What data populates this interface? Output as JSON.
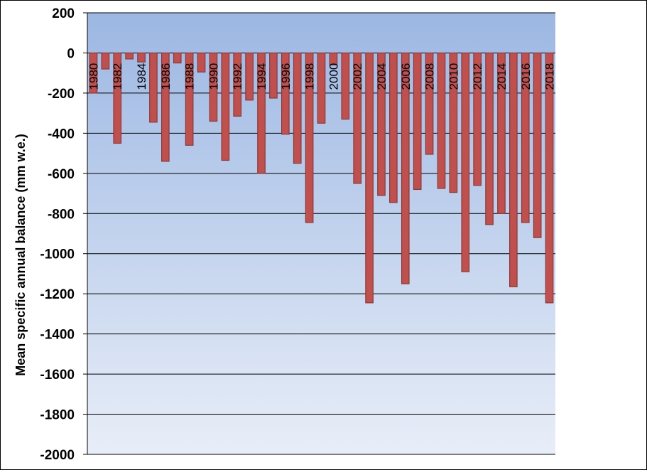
{
  "chart_data": {
    "type": "bar",
    "title": "",
    "xlabel": "",
    "ylabel": "Mean specific annual balance (mm w.e.)",
    "ylim": [
      -2000,
      200
    ],
    "yticks": [
      200,
      0,
      -200,
      -400,
      -600,
      -800,
      -1000,
      -1200,
      -1400,
      -1600,
      -1800,
      -2000
    ],
    "x_tick_labels": [
      "1980",
      "1982",
      "1984",
      "1986",
      "1988",
      "1990",
      "1992",
      "1994",
      "1996",
      "1998",
      "2000",
      "2002",
      "2004",
      "2006",
      "2008",
      "2010",
      "2012",
      "2014",
      "2016",
      "2018"
    ],
    "grid": true,
    "legend": "none",
    "categories": [
      "1980",
      "1981",
      "1982",
      "1983",
      "1984",
      "1985",
      "1986",
      "1987",
      "1988",
      "1989",
      "1990",
      "1991",
      "1992",
      "1993",
      "1994",
      "1995",
      "1996",
      "1997",
      "1998",
      "1999",
      "2000",
      "2001",
      "2002",
      "2003",
      "2004",
      "2005",
      "2006",
      "2007",
      "2008",
      "2009",
      "2010",
      "2011",
      "2012",
      "2013",
      "2014",
      "2015",
      "2016",
      "2017",
      "2018"
    ],
    "values": [
      -200,
      -80,
      -450,
      -30,
      -45,
      -345,
      -540,
      -50,
      -460,
      -95,
      -340,
      -535,
      -315,
      -235,
      -600,
      -225,
      -405,
      -550,
      -845,
      -350,
      -60,
      -330,
      -650,
      -1245,
      -710,
      -745,
      -1150,
      -680,
      -505,
      -675,
      -695,
      -1090,
      -660,
      -855,
      -800,
      -1165,
      -845,
      -920,
      -1245
    ],
    "colors": {
      "bar_fill": "#c0504d",
      "bar_stroke": "#8c3836",
      "plot_bg_top": "#9cb7e3",
      "plot_bg_bottom": "#e8eef8",
      "gridline": "#000000"
    }
  }
}
